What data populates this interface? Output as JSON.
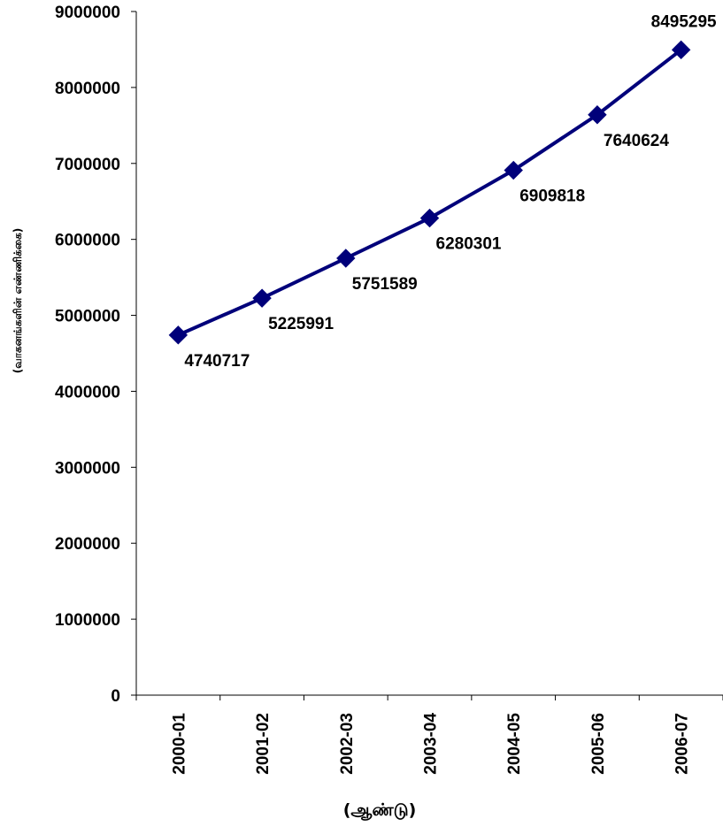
{
  "chart_data": {
    "type": "line",
    "title": "",
    "xlabel": "(ஆண்டு)",
    "ylabel": "(வாகனங்களின் எண்ணிக்கை)",
    "categories": [
      "2000-01",
      "2001-02",
      "2002-03",
      "2003-04",
      "2004-05",
      "2005-06",
      "2006-07"
    ],
    "series": [
      {
        "values": [
          4740717,
          5225991,
          5751589,
          6280301,
          6909818,
          7640624,
          8495295
        ],
        "color": "#00007a",
        "marker": "diamond"
      }
    ],
    "ylim": [
      0,
      9000000
    ],
    "yticks": [
      "0",
      "1000000",
      "2000000",
      "3000000",
      "4000000",
      "5000000",
      "6000000",
      "7000000",
      "8000000",
      "9000000"
    ],
    "data_labels": [
      "4740717",
      "5225991",
      "5751589",
      "6280301",
      "6909818",
      "7640624",
      "8495295"
    ],
    "grid": false,
    "legend": "none"
  }
}
